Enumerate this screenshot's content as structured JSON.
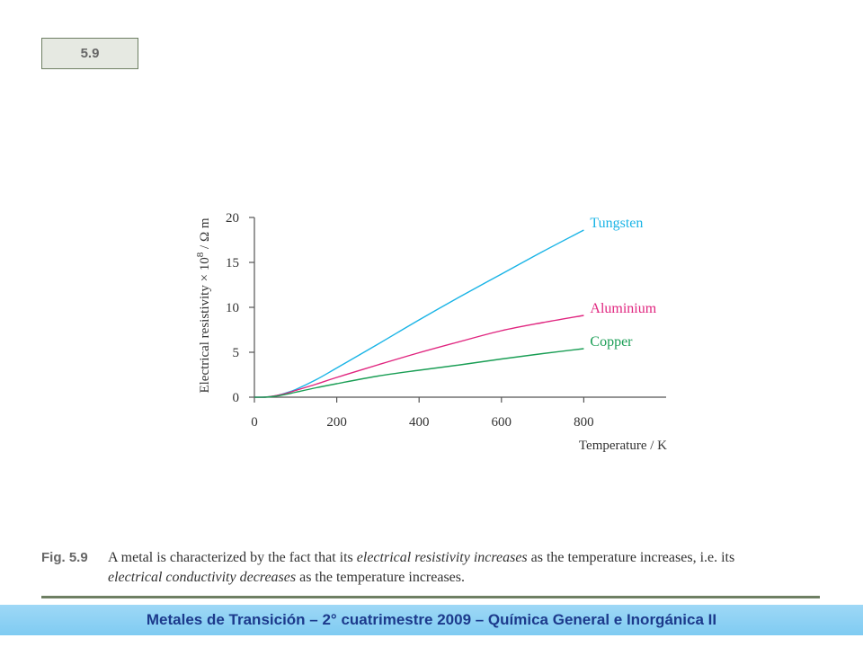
{
  "figure_tag": "5.9",
  "chart_data": {
    "type": "line",
    "xlabel": "Temperature / K",
    "ylabel_parts": [
      "Electrical resistivity × 10",
      "8",
      " / Ω m"
    ],
    "xlim": [
      0,
      1000
    ],
    "ylim": [
      0,
      20
    ],
    "x_ticks": [
      0,
      200,
      400,
      600,
      800
    ],
    "y_ticks": [
      0,
      5,
      10,
      15,
      20
    ],
    "grid": false,
    "series": [
      {
        "name": "Tungsten",
        "color": "#1ab4e6",
        "points": [
          [
            0,
            0
          ],
          [
            25,
            0
          ],
          [
            50,
            0.15
          ],
          [
            75,
            0.45
          ],
          [
            100,
            0.85
          ],
          [
            150,
            1.95
          ],
          [
            200,
            3.25
          ],
          [
            300,
            5.9
          ],
          [
            400,
            8.6
          ],
          [
            500,
            11.2
          ],
          [
            600,
            13.7
          ],
          [
            700,
            16.2
          ],
          [
            800,
            18.6
          ]
        ]
      },
      {
        "name": "Aluminium",
        "color": "#e0257f",
        "points": [
          [
            0,
            0
          ],
          [
            25,
            0
          ],
          [
            50,
            0.15
          ],
          [
            75,
            0.4
          ],
          [
            100,
            0.75
          ],
          [
            150,
            1.45
          ],
          [
            200,
            2.2
          ],
          [
            300,
            3.6
          ],
          [
            400,
            4.95
          ],
          [
            500,
            6.2
          ],
          [
            600,
            7.4
          ],
          [
            700,
            8.3
          ],
          [
            800,
            9.1
          ]
        ]
      },
      {
        "name": "Copper",
        "color": "#1a9e55",
        "points": [
          [
            0,
            0
          ],
          [
            25,
            0
          ],
          [
            50,
            0.1
          ],
          [
            75,
            0.3
          ],
          [
            100,
            0.55
          ],
          [
            150,
            1.05
          ],
          [
            200,
            1.5
          ],
          [
            300,
            2.35
          ],
          [
            400,
            3.0
          ],
          [
            500,
            3.6
          ],
          [
            600,
            4.25
          ],
          [
            700,
            4.85
          ],
          [
            800,
            5.4
          ]
        ]
      }
    ]
  },
  "caption": {
    "label": "Fig. 5.9",
    "text_1": "A metal is characterized by the fact that its ",
    "em_1": "electrical resistivity increases",
    "text_2": " as the temperature increases, i.e. its ",
    "em_2": "electrical conductivity decreases",
    "text_3": " as the temperature increases."
  },
  "footer": "Metales de Transición – 2° cuatrimestre 2009 – Química General e Inorgánica II"
}
